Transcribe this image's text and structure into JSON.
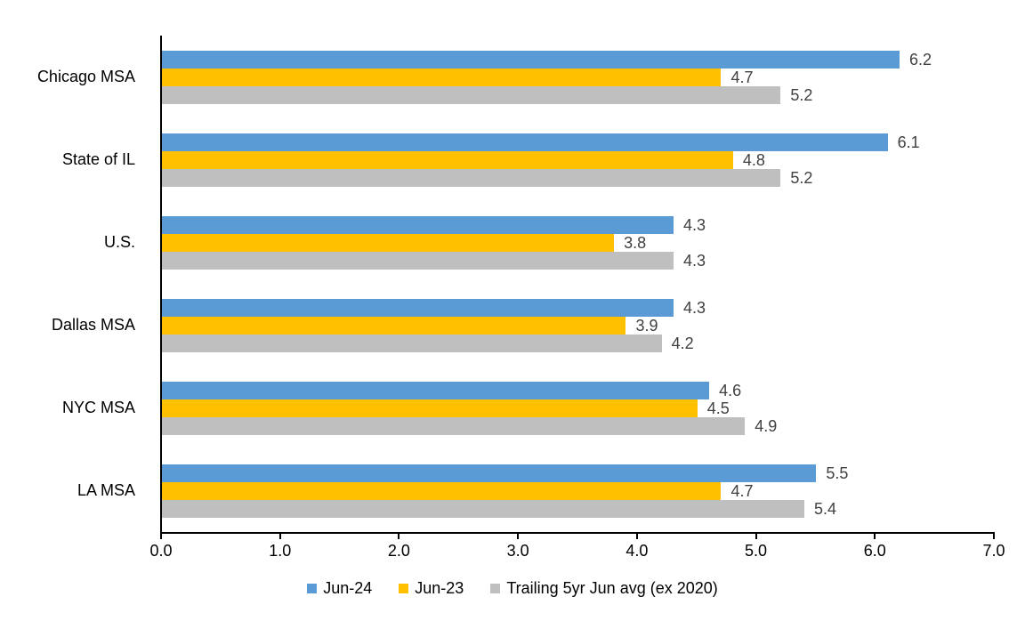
{
  "chart_data": {
    "type": "bar",
    "orientation": "horizontal",
    "title": "",
    "xlabel": "",
    "ylabel": "",
    "xlim": [
      0,
      7
    ],
    "x_ticks": [
      "0.0",
      "1.0",
      "2.0",
      "3.0",
      "4.0",
      "5.0",
      "6.0",
      "7.0"
    ],
    "grid": false,
    "legend_position": "bottom",
    "data_labels": true,
    "categories": [
      "Chicago MSA",
      "State of IL",
      "U.S.",
      "Dallas MSA",
      "NYC MSA",
      "LA MSA"
    ],
    "series": [
      {
        "name": "Jun-24",
        "color": "#5B9BD5",
        "values": [
          6.2,
          6.1,
          4.3,
          4.3,
          4.6,
          5.5
        ],
        "labels": [
          "6.2",
          "6.1",
          "4.3",
          "4.3",
          "4.6",
          "5.5"
        ]
      },
      {
        "name": "Jun-23",
        "color": "#FFC000",
        "values": [
          4.7,
          4.8,
          3.8,
          3.9,
          4.5,
          4.7
        ],
        "labels": [
          "4.7",
          "4.8",
          "3.8",
          "3.9",
          "4.5",
          "4.7"
        ]
      },
      {
        "name": "Trailing 5yr Jun avg (ex 2020)",
        "color": "#BFBFBF",
        "values": [
          5.2,
          5.2,
          4.3,
          4.2,
          4.9,
          5.4
        ],
        "labels": [
          "5.2",
          "5.2",
          "4.3",
          "4.2",
          "4.9",
          "5.4"
        ]
      }
    ],
    "colors": {
      "axis": "#000000",
      "category_text": "#000000",
      "tick_text": "#000000",
      "value_label_text": "#404040",
      "background": "#FFFFFF"
    }
  }
}
